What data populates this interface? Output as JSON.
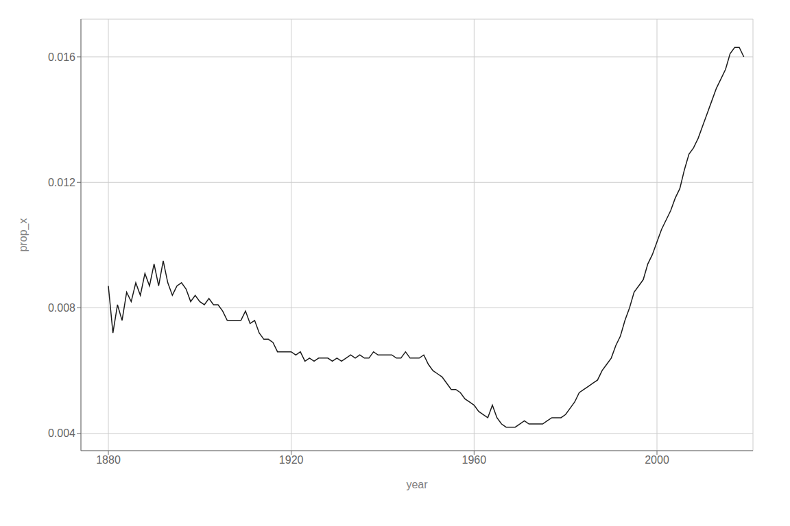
{
  "chart_data": {
    "type": "line",
    "xlabel": "year",
    "ylabel": "prop_x",
    "color": "#1a1a1a",
    "grid": true,
    "xlim": [
      1874,
      2021
    ],
    "ylim": [
      0.00345,
      0.0172
    ],
    "xticks": [
      1880,
      1920,
      1960,
      2000
    ],
    "yticks": [
      0.004,
      0.008,
      0.012,
      0.016
    ],
    "x": [
      1880,
      1881,
      1882,
      1883,
      1884,
      1885,
      1886,
      1887,
      1888,
      1889,
      1890,
      1891,
      1892,
      1893,
      1894,
      1895,
      1896,
      1897,
      1898,
      1899,
      1900,
      1901,
      1902,
      1903,
      1904,
      1905,
      1906,
      1907,
      1908,
      1909,
      1910,
      1911,
      1912,
      1913,
      1914,
      1915,
      1916,
      1917,
      1918,
      1919,
      1920,
      1921,
      1922,
      1923,
      1924,
      1925,
      1926,
      1927,
      1928,
      1929,
      1930,
      1931,
      1932,
      1933,
      1934,
      1935,
      1936,
      1937,
      1938,
      1939,
      1940,
      1941,
      1942,
      1943,
      1944,
      1945,
      1946,
      1947,
      1948,
      1949,
      1950,
      1951,
      1952,
      1953,
      1954,
      1955,
      1956,
      1957,
      1958,
      1959,
      1960,
      1961,
      1962,
      1963,
      1964,
      1965,
      1966,
      1967,
      1968,
      1969,
      1970,
      1971,
      1972,
      1973,
      1974,
      1975,
      1976,
      1977,
      1978,
      1979,
      1980,
      1981,
      1982,
      1983,
      1984,
      1985,
      1986,
      1987,
      1988,
      1989,
      1990,
      1991,
      1992,
      1993,
      1994,
      1995,
      1996,
      1997,
      1998,
      1999,
      2000,
      2001,
      2002,
      2003,
      2004,
      2005,
      2006,
      2007,
      2008,
      2009,
      2010,
      2011,
      2012,
      2013,
      2014,
      2015,
      2016,
      2017,
      2018,
      2019
    ],
    "values": [
      0.0087,
      0.0072,
      0.0081,
      0.0076,
      0.0085,
      0.0082,
      0.0088,
      0.0084,
      0.0091,
      0.0087,
      0.0094,
      0.0087,
      0.0095,
      0.0088,
      0.0084,
      0.0087,
      0.0088,
      0.0086,
      0.0082,
      0.0084,
      0.0082,
      0.0081,
      0.0083,
      0.0081,
      0.0081,
      0.0079,
      0.0076,
      0.0076,
      0.0076,
      0.0076,
      0.0079,
      0.0075,
      0.0076,
      0.0072,
      0.007,
      0.007,
      0.0069,
      0.0066,
      0.0066,
      0.0066,
      0.0066,
      0.0065,
      0.0066,
      0.0063,
      0.0064,
      0.0063,
      0.0064,
      0.0064,
      0.0064,
      0.0063,
      0.0064,
      0.0063,
      0.0064,
      0.0065,
      0.0064,
      0.0065,
      0.0064,
      0.0064,
      0.0066,
      0.0065,
      0.0065,
      0.0065,
      0.0065,
      0.0064,
      0.0064,
      0.0066,
      0.0064,
      0.0064,
      0.0064,
      0.0065,
      0.0062,
      0.006,
      0.0059,
      0.0058,
      0.0056,
      0.0054,
      0.0054,
      0.0053,
      0.0051,
      0.005,
      0.0049,
      0.0047,
      0.0046,
      0.0045,
      0.0049,
      0.0045,
      0.0043,
      0.0042,
      0.0042,
      0.0042,
      0.0043,
      0.0044,
      0.0043,
      0.0043,
      0.0043,
      0.0043,
      0.0044,
      0.0045,
      0.0045,
      0.0045,
      0.0046,
      0.0048,
      0.005,
      0.0053,
      0.0054,
      0.0055,
      0.0056,
      0.0057,
      0.006,
      0.0062,
      0.0064,
      0.0068,
      0.0071,
      0.0076,
      0.008,
      0.0085,
      0.0087,
      0.0089,
      0.0094,
      0.0097,
      0.0101,
      0.0105,
      0.0108,
      0.0111,
      0.0115,
      0.0118,
      0.0124,
      0.0129,
      0.0131,
      0.0134,
      0.0138,
      0.0142,
      0.0146,
      0.015,
      0.0153,
      0.0156,
      0.0161,
      0.0163,
      0.0163,
      0.016
    ]
  }
}
